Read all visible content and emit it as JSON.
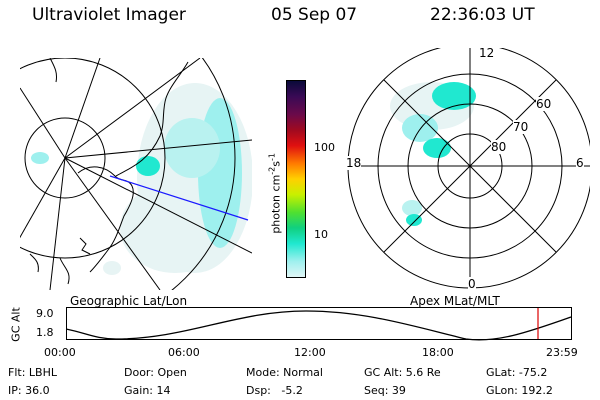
{
  "header": {
    "instrument": "Ultraviolet Imager",
    "date": "05 Sep 07",
    "time": "22:36:03 UT"
  },
  "colorbar": {
    "unit_label": "photon cm",
    "unit_exp1": "-2",
    "unit_mid": "s",
    "unit_exp2": "-1",
    "ticks": [
      "100",
      "10"
    ],
    "colors": [
      "#0a0a3a",
      "#3a0a55",
      "#6a0a4a",
      "#a00a20",
      "#e01010",
      "#ff7a00",
      "#ffd000",
      "#c8f000",
      "#50e030",
      "#10d080",
      "#20e8d0",
      "#9ef0ee",
      "#e0f6f6"
    ]
  },
  "geo_panel": {
    "label": "Geographic Lat/Lon"
  },
  "polar_panel": {
    "label": "Apex MLat/MLT",
    "mlt_labels": {
      "top": "12",
      "bottom": "0",
      "left": "18",
      "right": "6"
    },
    "lat_labels": [
      "60",
      "70",
      "80"
    ]
  },
  "orbit_plot": {
    "ylabel": "GC Alt",
    "ytick_top": "9.0",
    "ytick_bottom": "1.8",
    "xticks": [
      "00:00",
      "06:00",
      "12:00",
      "18:00",
      "23:59"
    ],
    "marker_color": "#dd0000",
    "curve_color": "#000000"
  },
  "status": {
    "flt": "Flt: LBHL",
    "ip": "IP: 36.0",
    "door": "Door: Open",
    "gain": "Gain: 14",
    "mode": "Mode: Normal",
    "dsp": "Dsp:   -5.2",
    "gcalt": "GC Alt: 5.6 Re",
    "seq": "Seq: 39",
    "glat": "GLat: -75.2",
    "glon": "GLon: 192.2"
  }
}
